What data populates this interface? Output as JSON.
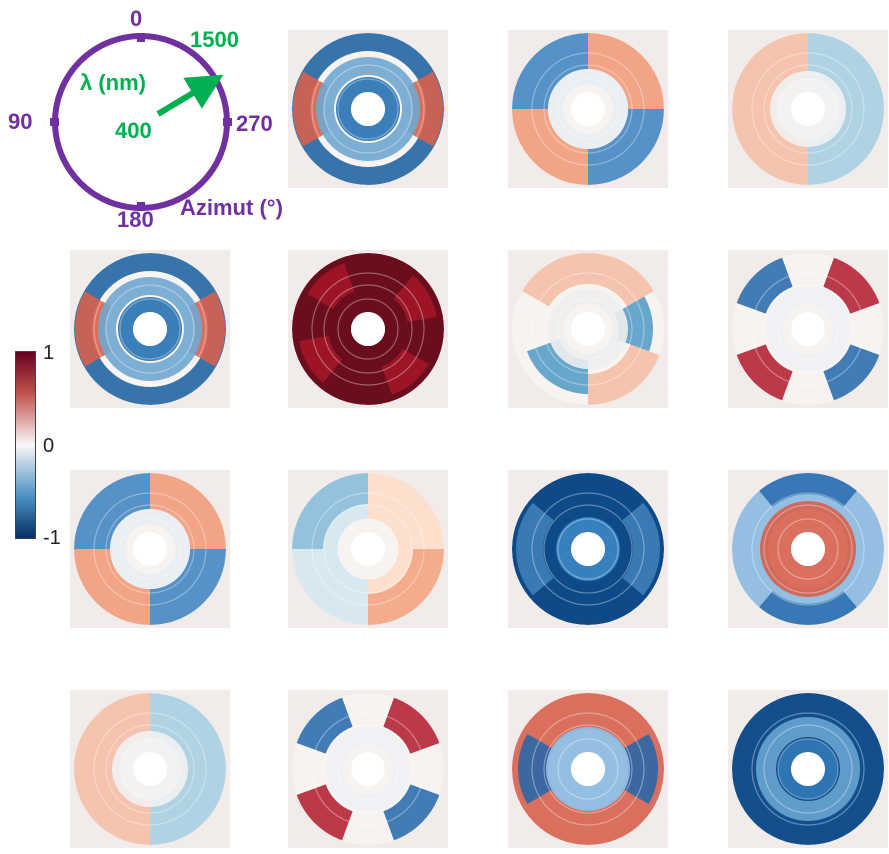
{
  "legend": {
    "azimuth_ticks": {
      "top": "0",
      "left": "90",
      "right": "270",
      "bottom": "180"
    },
    "azimuth_label": "Azimut (°)",
    "wavelength_label": "λ (nm)",
    "wavelength_inner": "400",
    "wavelength_outer": "1500",
    "colors": {
      "circle": "#7030a0",
      "arrow": "#00b050"
    }
  },
  "colorbar": {
    "max_label": "1",
    "mid_label": "0",
    "min_label": "-1",
    "colors": {
      "max": "#67001f",
      "mid": "#f7f7f7",
      "min": "#053061"
    }
  },
  "panels": [
    {
      "pattern": "blue-ring"
    },
    {
      "pattern": "quadrant-a"
    },
    {
      "pattern": "quadrant-faint"
    },
    {
      "pattern": "blue-ring"
    },
    {
      "pattern": "red-ring"
    },
    {
      "pattern": "quadrant-b"
    },
    {
      "pattern": "quadrant-c"
    },
    {
      "pattern": "quadrant-a"
    },
    {
      "pattern": "quadrant-b-faint"
    },
    {
      "pattern": "blue-dark"
    },
    {
      "pattern": "red-inner"
    },
    {
      "pattern": "quadrant-faint"
    },
    {
      "pattern": "quadrant-c"
    },
    {
      "pattern": "red-outer-blue-inner"
    },
    {
      "pattern": "blue-deep"
    }
  ]
}
